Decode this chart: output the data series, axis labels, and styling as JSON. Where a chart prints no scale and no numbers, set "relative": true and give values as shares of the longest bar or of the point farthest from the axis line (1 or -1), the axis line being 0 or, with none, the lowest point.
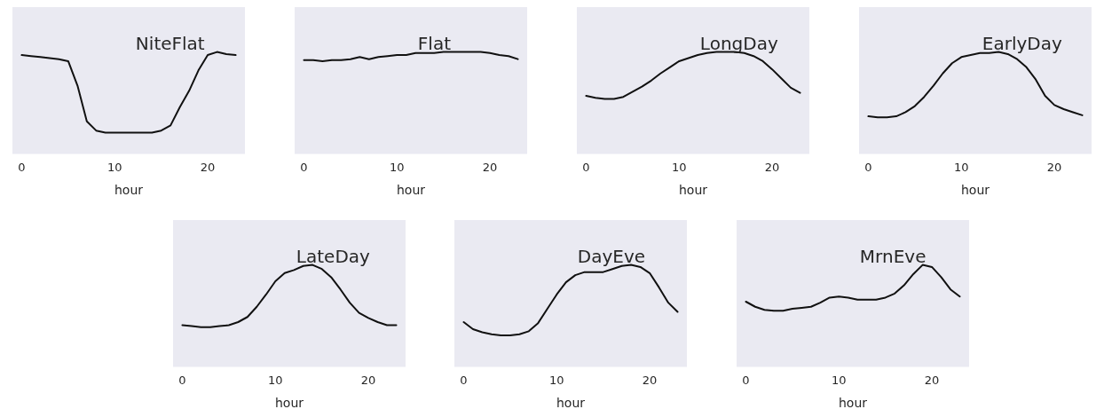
{
  "chart_data": [
    {
      "type": "line",
      "title": "NiteFlat",
      "xlabel": "hour",
      "relative": true,
      "tick_labels": "x",
      "xlim": [
        -1,
        24
      ],
      "xticks": [
        0,
        10,
        20
      ],
      "x": [
        0,
        1,
        2,
        3,
        4,
        5,
        6,
        7,
        8,
        9,
        10,
        11,
        12,
        13,
        14,
        15,
        16,
        17,
        18,
        19,
        20,
        21,
        22,
        23
      ],
      "color": "#111111",
      "values": [
        0.97,
        0.96,
        0.95,
        0.94,
        0.93,
        0.91,
        0.67,
        0.32,
        0.23,
        0.21,
        0.21,
        0.21,
        0.21,
        0.21,
        0.21,
        0.23,
        0.28,
        0.46,
        0.62,
        0.82,
        0.97,
        1,
        0.98,
        0.97
      ]
    },
    {
      "type": "line",
      "title": "Flat",
      "xlabel": "hour",
      "relative": true,
      "tick_labels": "x",
      "xlim": [
        -1,
        24
      ],
      "xticks": [
        0,
        10,
        20
      ],
      "x": [
        0,
        1,
        2,
        3,
        4,
        5,
        6,
        7,
        8,
        9,
        10,
        11,
        12,
        13,
        14,
        15,
        16,
        17,
        18,
        19,
        20,
        21,
        22,
        23
      ],
      "color": "#111111",
      "values": [
        0.92,
        0.92,
        0.91,
        0.92,
        0.92,
        0.93,
        0.95,
        0.93,
        0.95,
        0.96,
        0.97,
        0.97,
        0.99,
        0.99,
        0.99,
        1,
        1,
        1,
        1,
        1,
        0.99,
        0.97,
        0.96,
        0.93
      ]
    },
    {
      "type": "line",
      "title": "LongDay",
      "xlabel": "hour",
      "relative": true,
      "tick_labels": "x",
      "xlim": [
        -1,
        24
      ],
      "xticks": [
        0,
        10,
        20
      ],
      "x": [
        0,
        1,
        2,
        3,
        4,
        5,
        6,
        7,
        8,
        9,
        10,
        11,
        12,
        13,
        14,
        15,
        16,
        17,
        18,
        19,
        20,
        21,
        22,
        23
      ],
      "color": "#111111",
      "values": [
        0.57,
        0.55,
        0.54,
        0.54,
        0.56,
        0.61,
        0.66,
        0.72,
        0.79,
        0.85,
        0.91,
        0.94,
        0.97,
        0.99,
        1,
        1,
        1,
        0.99,
        0.96,
        0.91,
        0.83,
        0.74,
        0.65,
        0.6
      ]
    },
    {
      "type": "line",
      "title": "EarlyDay",
      "xlabel": "hour",
      "relative": true,
      "tick_labels": "x",
      "xlim": [
        -1,
        24
      ],
      "xticks": [
        0,
        10,
        20
      ],
      "x": [
        0,
        1,
        2,
        3,
        4,
        5,
        6,
        7,
        8,
        9,
        10,
        11,
        12,
        13,
        14,
        15,
        16,
        17,
        18,
        19,
        20,
        21,
        22,
        23
      ],
      "color": "#111111",
      "values": [
        0.37,
        0.36,
        0.36,
        0.37,
        0.41,
        0.47,
        0.56,
        0.67,
        0.79,
        0.89,
        0.95,
        0.97,
        0.99,
        0.99,
        1,
        0.98,
        0.93,
        0.85,
        0.73,
        0.57,
        0.48,
        0.44,
        0.41,
        0.38
      ]
    },
    {
      "type": "line",
      "title": "LateDay",
      "xlabel": "hour",
      "relative": true,
      "tick_labels": "x",
      "xlim": [
        -1,
        24
      ],
      "xticks": [
        0,
        10,
        20
      ],
      "x": [
        0,
        1,
        2,
        3,
        4,
        5,
        6,
        7,
        8,
        9,
        10,
        11,
        12,
        13,
        14,
        15,
        16,
        17,
        18,
        19,
        20,
        21,
        22,
        23
      ],
      "color": "#111111",
      "values": [
        0.41,
        0.4,
        0.39,
        0.39,
        0.4,
        0.41,
        0.44,
        0.49,
        0.59,
        0.71,
        0.84,
        0.92,
        0.95,
        0.99,
        1,
        0.96,
        0.88,
        0.76,
        0.63,
        0.53,
        0.48,
        0.44,
        0.41,
        0.41
      ]
    },
    {
      "type": "line",
      "title": "DayEve",
      "xlabel": "hour",
      "relative": true,
      "tick_labels": "x",
      "xlim": [
        -1,
        24
      ],
      "xticks": [
        0,
        10,
        20
      ],
      "x": [
        0,
        1,
        2,
        3,
        4,
        5,
        6,
        7,
        8,
        9,
        10,
        11,
        12,
        13,
        14,
        15,
        16,
        17,
        18,
        19,
        20,
        21,
        22,
        23
      ],
      "color": "#111111",
      "values": [
        0.44,
        0.37,
        0.34,
        0.32,
        0.31,
        0.31,
        0.32,
        0.35,
        0.43,
        0.57,
        0.71,
        0.83,
        0.9,
        0.93,
        0.93,
        0.93,
        0.96,
        0.99,
        1,
        0.98,
        0.92,
        0.78,
        0.63,
        0.54
      ]
    },
    {
      "type": "line",
      "title": "MrnEve",
      "xlabel": "hour",
      "relative": true,
      "tick_labels": "x",
      "xlim": [
        -1,
        24
      ],
      "xticks": [
        0,
        10,
        20
      ],
      "x": [
        0,
        1,
        2,
        3,
        4,
        5,
        6,
        7,
        8,
        9,
        10,
        11,
        12,
        13,
        14,
        15,
        16,
        17,
        18,
        19,
        20,
        21,
        22,
        23
      ],
      "color": "#111111",
      "values": [
        0.64,
        0.59,
        0.56,
        0.55,
        0.55,
        0.57,
        0.58,
        0.59,
        0.63,
        0.68,
        0.69,
        0.68,
        0.66,
        0.66,
        0.66,
        0.68,
        0.72,
        0.8,
        0.91,
        1,
        0.98,
        0.88,
        0.76,
        0.69
      ]
    }
  ]
}
